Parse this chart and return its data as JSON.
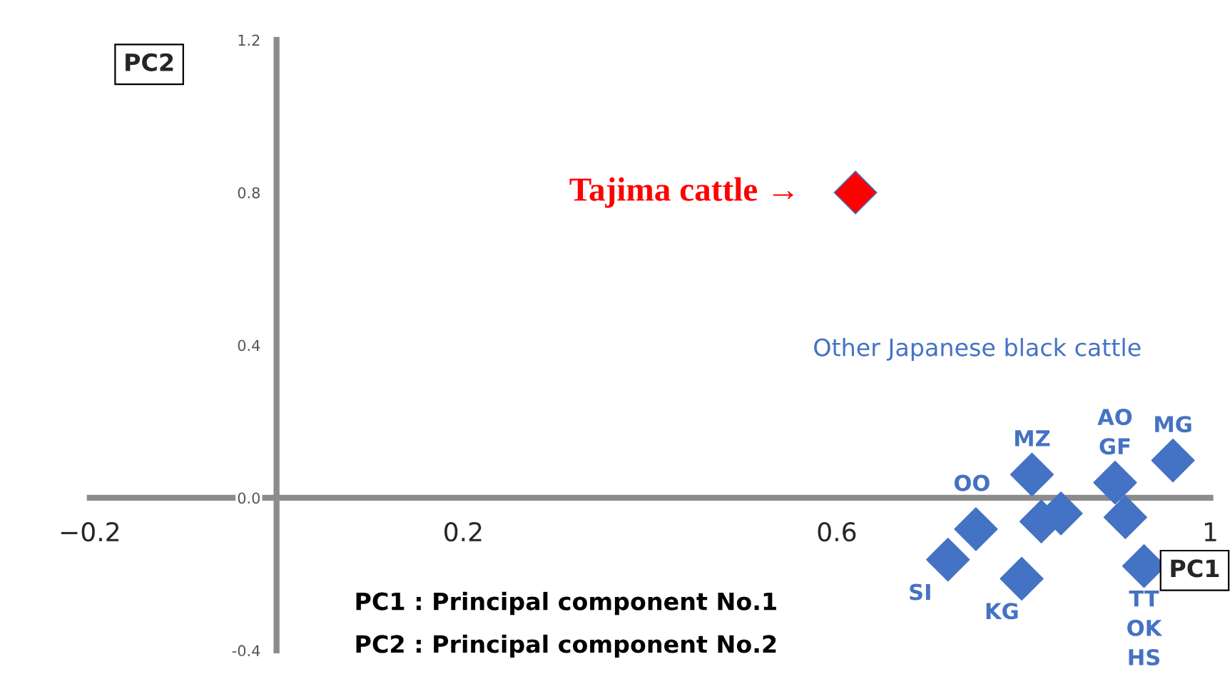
{
  "chart_data": {
    "type": "scatter",
    "xlabel": "PC1",
    "ylabel": "PC2",
    "xlim": [
      -0.2,
      1
    ],
    "xticks": [
      {
        "value": -0.2,
        "label": "−0.2"
      },
      0.2,
      0.6,
      1
    ],
    "ylim": [
      -0.4,
      1.2
    ],
    "yticks": [
      {
        "value": -0.4,
        "label": "-0.4"
      },
      {
        "value": 0,
        "label": "0.0"
      },
      0.4,
      0.8,
      1.2
    ],
    "marker": "diamond",
    "grid": false,
    "legend": false,
    "series": [
      {
        "color": "#ff0000",
        "x": [
          0.62
        ],
        "values": [
          0.8
        ]
      },
      {
        "color": "#4472c4",
        "x": [
          0.96,
          0.898,
          0.809,
          0.84,
          0.819,
          0.909,
          0.749,
          0.719,
          0.798,
          0.929
        ],
        "values": [
          0.098,
          0.04,
          0.061,
          -0.041,
          -0.062,
          -0.051,
          -0.082,
          -0.162,
          -0.212,
          -0.179
        ]
      }
    ],
    "annotations": [
      {
        "text": "Tajima cattle →",
        "x": 0.62,
        "y": 0.8
      },
      "Other Japanese black cattle",
      {
        "text": "MG",
        "x": 0.96,
        "y": 0.098
      },
      {
        "text": "AO\nGF",
        "x": 0.898,
        "y": 0.04
      },
      {
        "text": "MZ",
        "x": 0.809,
        "y": 0.061
      },
      {
        "text": "OO",
        "x": 0.749,
        "y": -0.082
      },
      {
        "text": "SI",
        "x": 0.719,
        "y": -0.162
      },
      {
        "text": "KG",
        "x": 0.798,
        "y": -0.212
      },
      {
        "text": "TT\nOK\nHS",
        "x": 0.929,
        "y": -0.179
      },
      "PC1 : Principal component No.1",
      "PC2 : Principal component No.2"
    ]
  }
}
